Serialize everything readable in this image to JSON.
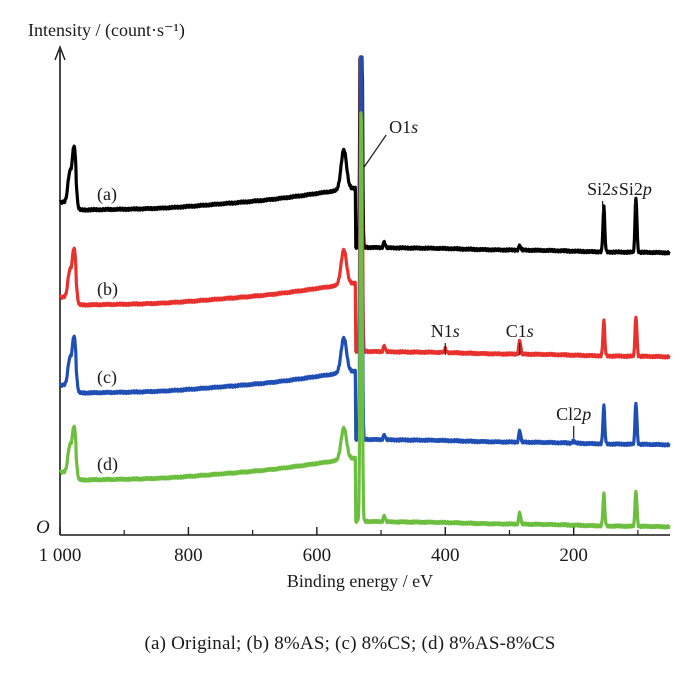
{
  "chart_data": {
    "type": "line",
    "title": "",
    "xlabel": "Binding energy / eV",
    "ylabel": "Intensity / (count·s⁻¹)",
    "origin_label": "O",
    "xlim": [
      1000,
      50
    ],
    "x_reversed": true,
    "x_ticks": [
      1000,
      800,
      600,
      400,
      200
    ],
    "x_tick_labels": [
      "1 000",
      "800",
      "600",
      "400",
      "200"
    ],
    "ylim": [
      0,
      480
    ],
    "y_ticks_shown": false,
    "grid": false,
    "series": [
      {
        "name": "(a)",
        "color": "#000000",
        "baseline_high": 325,
        "baseline_low": 282,
        "peaks": [
          {
            "x": 985,
            "height": 28,
            "width": 4
          },
          {
            "x": 978,
            "height": 55,
            "width": 4
          },
          {
            "x": 558,
            "height": 40,
            "width": 6
          },
          {
            "x": 531,
            "height": 470,
            "width": 2
          },
          {
            "x": 495,
            "height": 6,
            "width": 2
          },
          {
            "x": 284,
            "height": 5,
            "width": 2
          },
          {
            "x": 153,
            "height": 45,
            "width": 2
          },
          {
            "x": 103,
            "height": 55,
            "width": 2
          }
        ]
      },
      {
        "name": "(b)",
        "color": "#e8312c",
        "baseline_high": 230,
        "baseline_low": 178,
        "peaks": [
          {
            "x": 985,
            "height": 25,
            "width": 4
          },
          {
            "x": 978,
            "height": 48,
            "width": 4
          },
          {
            "x": 558,
            "height": 35,
            "width": 6
          },
          {
            "x": 531,
            "height": 410,
            "width": 2
          },
          {
            "x": 495,
            "height": 6,
            "width": 2
          },
          {
            "x": 400,
            "height": 4,
            "width": 2
          },
          {
            "x": 284,
            "height": 14,
            "width": 2
          },
          {
            "x": 153,
            "height": 35,
            "width": 2
          },
          {
            "x": 103,
            "height": 40,
            "width": 2
          }
        ]
      },
      {
        "name": "(c)",
        "color": "#1f4eb4",
        "baseline_high": 142,
        "baseline_low": 90,
        "peaks": [
          {
            "x": 985,
            "height": 25,
            "width": 4
          },
          {
            "x": 978,
            "height": 48,
            "width": 4
          },
          {
            "x": 558,
            "height": 35,
            "width": 6
          },
          {
            "x": 531,
            "height": 430,
            "width": 2
          },
          {
            "x": 495,
            "height": 5,
            "width": 2
          },
          {
            "x": 284,
            "height": 12,
            "width": 2
          },
          {
            "x": 200,
            "height": 3,
            "width": 2
          },
          {
            "x": 153,
            "height": 38,
            "width": 2
          },
          {
            "x": 103,
            "height": 42,
            "width": 2
          }
        ]
      },
      {
        "name": "(d)",
        "color": "#6cbf3e",
        "baseline_high": 55,
        "baseline_low": 8,
        "peaks": [
          {
            "x": 985,
            "height": 25,
            "width": 4
          },
          {
            "x": 978,
            "height": 45,
            "width": 4
          },
          {
            "x": 558,
            "height": 32,
            "width": 6
          },
          {
            "x": 531,
            "height": 420,
            "width": 2
          },
          {
            "x": 495,
            "height": 6,
            "width": 2
          },
          {
            "x": 284,
            "height": 12,
            "width": 2
          },
          {
            "x": 153,
            "height": 32,
            "width": 2
          },
          {
            "x": 103,
            "height": 36,
            "width": 2
          }
        ]
      }
    ],
    "annotations": [
      {
        "text": "O1s",
        "x": 531,
        "y": 408
      },
      {
        "text": "Si2s",
        "x": 155,
        "y": 340
      },
      {
        "text": "Si2p",
        "x": 104,
        "y": 340
      },
      {
        "text": "N1s",
        "x": 400,
        "y": 198
      },
      {
        "text": "C1s",
        "x": 284,
        "y": 198
      },
      {
        "text": "Cl2p",
        "x": 200,
        "y": 115
      }
    ]
  },
  "caption": "(a) Original; (b) 8%AS; (c) 8%CS; (d) 8%AS-8%CS"
}
